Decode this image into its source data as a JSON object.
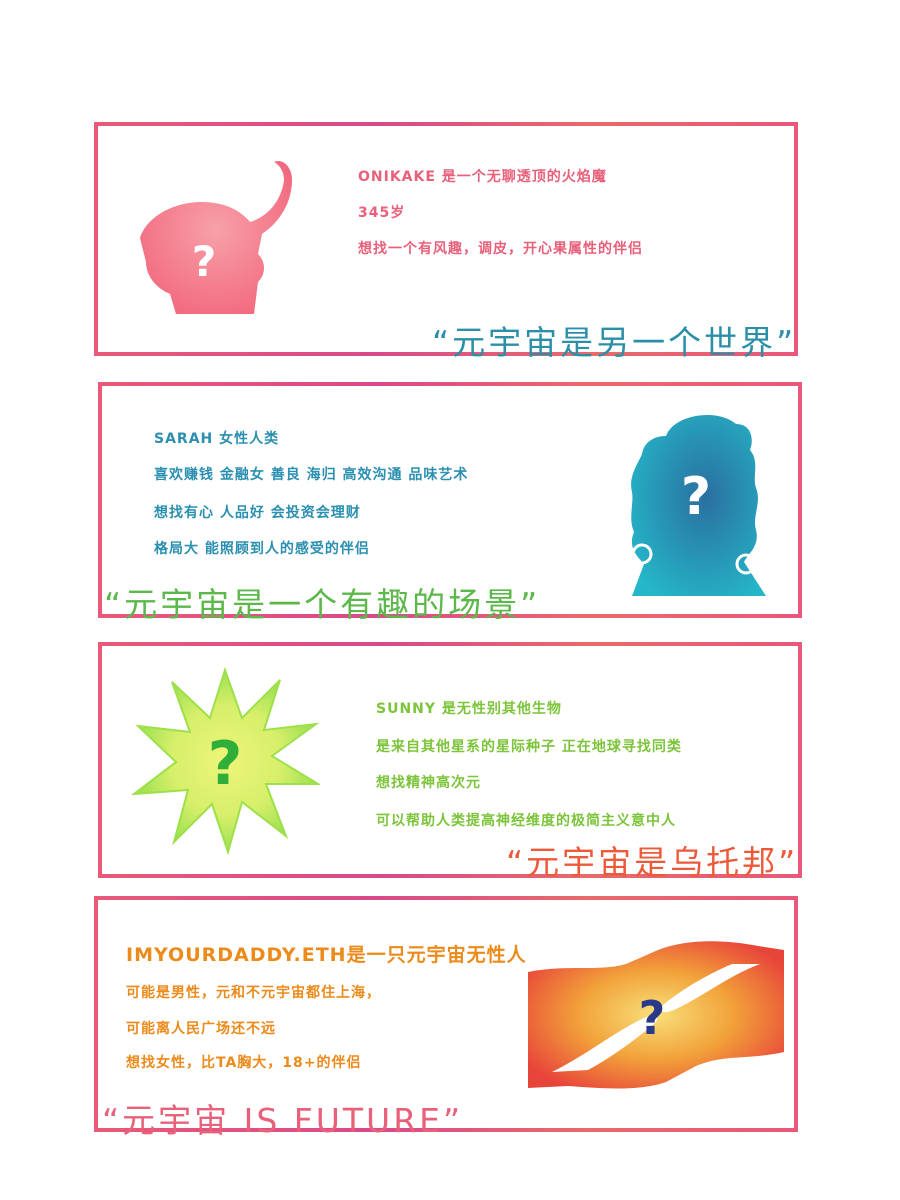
{
  "cards": [
    {
      "lines": [
        "ONIKAKE 是一个无聊透顶的火焰魔",
        "345岁",
        "想找一个有风趣，调皮，开心果属性的伴侣"
      ],
      "quote": "“元宇宙是另一个世界”",
      "icon_mark": "?",
      "text_color": "#e8607a",
      "quote_color": "#2b8fa8"
    },
    {
      "lines": [
        "SARAH 女性人类",
        "喜欢赚钱 金融女  善良 海归 高效沟通 品味艺术",
        "想找有心 人品好  会投资会理财",
        "格局大 能照顾到人的感受的伴侣"
      ],
      "quote": "“元宇宙是一个有趣的场景”",
      "icon_mark": "?",
      "text_color": "#2a8fb0",
      "quote_color": "#5cb84a"
    },
    {
      "lines": [
        "SUNNY 是无性别其他生物",
        "是来自其他星系的星际种子 正在地球寻找同类",
        "想找精神高次元",
        "可以帮助人类提高神经维度的极简主义意中人"
      ],
      "quote": "“元宇宙是乌托邦”",
      "icon_mark": "?",
      "text_color": "#7cc43a",
      "quote_color": "#ec5a3a"
    },
    {
      "lines": [
        "IMYOURDADDY.ETH是一只元宇宙无性人",
        "可能是男性，元和不元宇宙都住上海，",
        "可能离人民广场还不远",
        "想找女性，比TA胸大，18+的伴侣"
      ],
      "quote": "“元宇宙 IS FUTURE”",
      "icon_mark": "?",
      "text_color": "#ec8a1a",
      "quote_color": "#e8607a"
    }
  ]
}
